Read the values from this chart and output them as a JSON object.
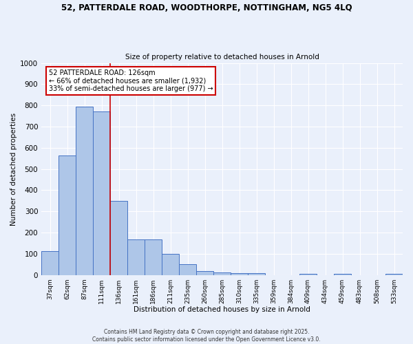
{
  "title_line1": "52, PATTERDALE ROAD, WOODTHORPE, NOTTINGHAM, NG5 4LQ",
  "title_line2": "Size of property relative to detached houses in Arnold",
  "xlabel": "Distribution of detached houses by size in Arnold",
  "ylabel": "Number of detached properties",
  "categories": [
    "37sqm",
    "62sqm",
    "87sqm",
    "111sqm",
    "136sqm",
    "161sqm",
    "186sqm",
    "211sqm",
    "235sqm",
    "260sqm",
    "285sqm",
    "310sqm",
    "335sqm",
    "359sqm",
    "384sqm",
    "409sqm",
    "434sqm",
    "459sqm",
    "483sqm",
    "508sqm",
    "533sqm"
  ],
  "values": [
    113,
    563,
    793,
    770,
    348,
    167,
    167,
    98,
    52,
    18,
    13,
    10,
    9,
    0,
    0,
    5,
    0,
    5,
    0,
    0,
    5
  ],
  "bar_color": "#aec6e8",
  "bar_edge_color": "#4472c4",
  "annotation_text": "52 PATTERDALE ROAD: 126sqm\n← 66% of detached houses are smaller (1,932)\n33% of semi-detached houses are larger (977) →",
  "vline_x_index": 3,
  "vline_color": "#cc0000",
  "ylim": [
    0,
    1000
  ],
  "yticks": [
    0,
    100,
    200,
    300,
    400,
    500,
    600,
    700,
    800,
    900,
    1000
  ],
  "bg_color": "#eaf0fb",
  "grid_color": "#ffffff",
  "footer_text": "Contains HM Land Registry data © Crown copyright and database right 2025.\nContains public sector information licensed under the Open Government Licence v3.0.",
  "annotation_box_color": "#ffffff",
  "annotation_box_edge": "#cc0000"
}
